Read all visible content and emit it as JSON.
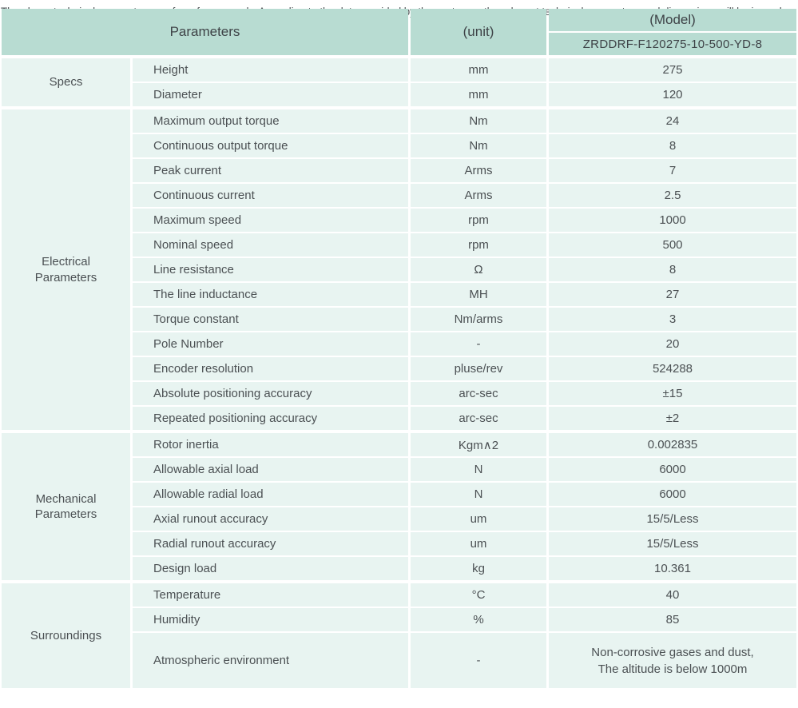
{
  "header": {
    "parameters_label": "Parameters",
    "unit_label": "(unit)",
    "model_label": "(Model)",
    "model_value": "ZRDDRF-F120275-10-500-YD-8"
  },
  "sections": [
    {
      "label": "Specs",
      "rows": [
        {
          "name": "Height",
          "unit": "mm",
          "value": "275"
        },
        {
          "name": "Diameter",
          "unit": "mm",
          "value": "120"
        }
      ]
    },
    {
      "label": "Electrical\nParameters",
      "rows": [
        {
          "name": "Maximum output torque",
          "unit": "Nm",
          "value": "24"
        },
        {
          "name": "Continuous output torque",
          "unit": "Nm",
          "value": "8"
        },
        {
          "name": "Peak current",
          "unit": "Arms",
          "value": "7"
        },
        {
          "name": "Continuous current",
          "unit": "Arms",
          "value": "2.5"
        },
        {
          "name": "Maximum speed",
          "unit": "rpm",
          "value": "1000"
        },
        {
          "name": "Nominal speed",
          "unit": "rpm",
          "value": "500"
        },
        {
          "name": "Line resistance",
          "unit": "Ω",
          "value": "8"
        },
        {
          "name": "The line inductance",
          "unit": "MH",
          "value": "27"
        },
        {
          "name": "Torque constant",
          "unit": "Nm/arms",
          "value": "3"
        },
        {
          "name": "Pole Number",
          "unit": "-",
          "value": "20"
        },
        {
          "name": "Encoder resolution",
          "unit": "pluse/rev",
          "value": "524288"
        },
        {
          "name": "Absolute positioning accuracy",
          "unit": "arc-sec",
          "value": "±15"
        },
        {
          "name": "Repeated positioning accuracy",
          "unit": "arc-sec",
          "value": "±2"
        }
      ]
    },
    {
      "label": "Mechanical\nParameters",
      "rows": [
        {
          "name": "Rotor inertia",
          "unit": "Kgm∧2",
          "value": "0.002835"
        },
        {
          "name": "Allowable axial load",
          "unit": "N",
          "value": "6000"
        },
        {
          "name": "Allowable radial load",
          "unit": "N",
          "value": "6000"
        },
        {
          "name": "Axial runout accuracy",
          "unit": "um",
          "value": "15/5/Less"
        },
        {
          "name": "Radial runout accuracy",
          "unit": "um",
          "value": "15/5/Less"
        },
        {
          "name": "Design load",
          "unit": "kg",
          "value": "10.361"
        }
      ]
    },
    {
      "label": "Surroundings",
      "rows": [
        {
          "name": "Temperature",
          "unit": "°C",
          "value": "40"
        },
        {
          "name": "Humidity",
          "unit": "%",
          "value": "85"
        },
        {
          "name": "Atmospheric environment",
          "unit": "-",
          "value": "Non-corrosive gases and dust,\nThe altitude is below 1000m",
          "tall": true
        }
      ]
    }
  ],
  "footer": {
    "note": "The above technical parameters are for reference only. According to the data provided by the customer, the relevant technical parameters and dimensions will be issued."
  },
  "colors": {
    "header_bg": "#b8dcd2",
    "cell_bg": "#e8f4f1",
    "text": "#4b5053"
  }
}
